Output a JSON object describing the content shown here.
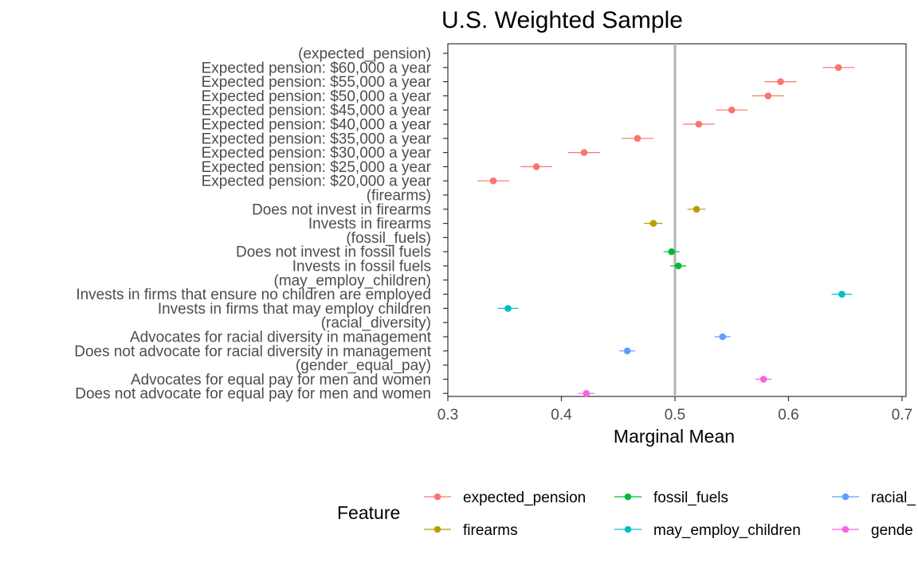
{
  "chart_data": {
    "type": "scatter",
    "title": "U.S. Weighted Sample",
    "xlabel": "Marginal Mean",
    "ylabel": "",
    "xlim": [
      0.3,
      0.7
    ],
    "xticks": [
      "0.3",
      "0.4",
      "0.5",
      "0.6",
      "0.7"
    ],
    "reference_line_x": 0.5,
    "grid": false,
    "legend": {
      "title": "Feature",
      "position": "bottom"
    },
    "rows": [
      {
        "label": "(expected_pension)",
        "header": true
      },
      {
        "label": "Expected pension: $60,000 a year",
        "feature": "expected_pension",
        "estimate": 0.644,
        "lower": 0.63,
        "upper": 0.658
      },
      {
        "label": "Expected pension: $55,000 a year",
        "feature": "expected_pension",
        "estimate": 0.593,
        "lower": 0.579,
        "upper": 0.607
      },
      {
        "label": "Expected pension: $50,000 a year",
        "feature": "expected_pension",
        "estimate": 0.582,
        "lower": 0.568,
        "upper": 0.596
      },
      {
        "label": "Expected pension: $45,000 a year",
        "feature": "expected_pension",
        "estimate": 0.55,
        "lower": 0.536,
        "upper": 0.564
      },
      {
        "label": "Expected pension: $40,000 a year",
        "feature": "expected_pension",
        "estimate": 0.521,
        "lower": 0.507,
        "upper": 0.535
      },
      {
        "label": "Expected pension: $35,000 a year",
        "feature": "expected_pension",
        "estimate": 0.467,
        "lower": 0.453,
        "upper": 0.481
      },
      {
        "label": "Expected pension: $30,000 a year",
        "feature": "expected_pension",
        "estimate": 0.42,
        "lower": 0.406,
        "upper": 0.434
      },
      {
        "label": "Expected pension: $25,000 a year",
        "feature": "expected_pension",
        "estimate": 0.378,
        "lower": 0.364,
        "upper": 0.392
      },
      {
        "label": "Expected pension: $20,000 a year",
        "feature": "expected_pension",
        "estimate": 0.34,
        "lower": 0.326,
        "upper": 0.354
      },
      {
        "label": "(firearms)",
        "header": true
      },
      {
        "label": "Does not invest in firearms",
        "feature": "firearms",
        "estimate": 0.519,
        "lower": 0.511,
        "upper": 0.527
      },
      {
        "label": "Invests in firearms",
        "feature": "firearms",
        "estimate": 0.481,
        "lower": 0.473,
        "upper": 0.489
      },
      {
        "label": "(fossil_fuels)",
        "header": true
      },
      {
        "label": "Does not invest in fossil fuels",
        "feature": "fossil_fuels",
        "estimate": 0.497,
        "lower": 0.49,
        "upper": 0.504
      },
      {
        "label": "Invests in fossil fuels",
        "feature": "fossil_fuels",
        "estimate": 0.503,
        "lower": 0.496,
        "upper": 0.51
      },
      {
        "label": "(may_employ_children)",
        "header": true
      },
      {
        "label": "Invests in firms that ensure no children are employed",
        "feature": "may_employ_children",
        "estimate": 0.647,
        "lower": 0.638,
        "upper": 0.656
      },
      {
        "label": "Invests in firms that may employ children",
        "feature": "may_employ_children",
        "estimate": 0.353,
        "lower": 0.344,
        "upper": 0.362
      },
      {
        "label": "(racial_diversity)",
        "header": true
      },
      {
        "label": "Advocates for racial diversity in management",
        "feature": "racial_diversity",
        "estimate": 0.542,
        "lower": 0.535,
        "upper": 0.549
      },
      {
        "label": "Does not advocate for racial diversity in management",
        "feature": "racial_diversity",
        "estimate": 0.458,
        "lower": 0.451,
        "upper": 0.465
      },
      {
        "label": "(gender_equal_pay)",
        "header": true
      },
      {
        "label": "Advocates for equal pay for men and women",
        "feature": "gender_equal_pay",
        "estimate": 0.578,
        "lower": 0.571,
        "upper": 0.585
      },
      {
        "label": "Does not advocate for equal pay for men and women",
        "feature": "gender_equal_pay",
        "estimate": 0.422,
        "lower": 0.415,
        "upper": 0.429
      }
    ],
    "series": [
      {
        "name": "expected_pension",
        "color": "#F8766D",
        "legend_label": "expected_pension"
      },
      {
        "name": "firearms",
        "color": "#B79F00",
        "legend_label": "firearms"
      },
      {
        "name": "fossil_fuels",
        "color": "#00BA38",
        "legend_label": "fossil_fuels"
      },
      {
        "name": "may_employ_children",
        "color": "#00BFC4",
        "legend_label": "may_employ_children"
      },
      {
        "name": "racial_diversity",
        "color": "#619CFF",
        "legend_label": "racial_"
      },
      {
        "name": "gender_equal_pay",
        "color": "#F564E3",
        "legend_label": "gende"
      }
    ]
  }
}
